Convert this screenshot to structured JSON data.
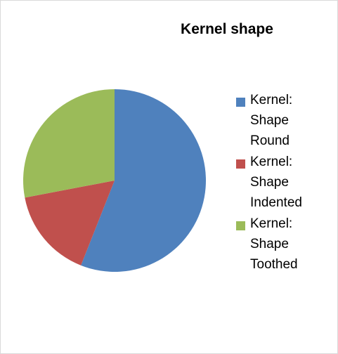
{
  "chart_data": {
    "type": "pie",
    "title": "Kernel shape",
    "categories": [
      "Kernel: Shape Round",
      "Kernel: Shape Indented",
      "Kernel: Shape Toothed"
    ],
    "values": [
      56,
      16,
      28
    ],
    "colors": [
      "#4f81bd",
      "#c0504d",
      "#9bbb59"
    ],
    "legend": "right"
  }
}
